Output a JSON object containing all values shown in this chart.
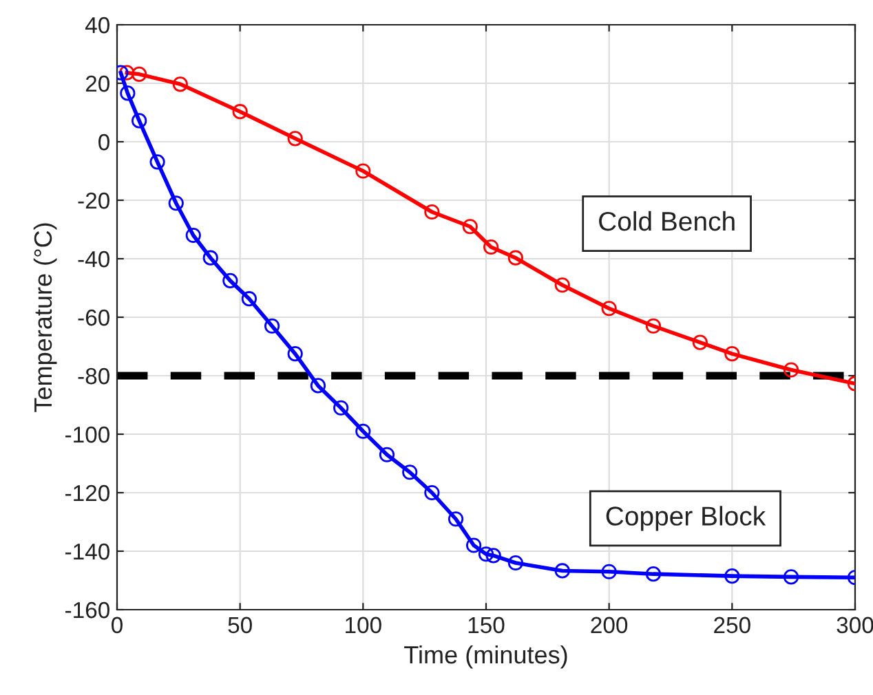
{
  "chart_data": {
    "type": "line",
    "xlabel": "Time (minutes)",
    "ylabel": "Temperature (°C)",
    "xlim": [
      0,
      300
    ],
    "xticks": [
      0,
      50,
      100,
      150,
      200,
      250,
      300
    ],
    "ylim": [
      -160,
      40
    ],
    "yticks": [
      -160,
      -140,
      -120,
      -100,
      -80,
      -60,
      -40,
      -20,
      0,
      20,
      40
    ],
    "grid": true,
    "marker": "circle",
    "legend": false,
    "ref_lines": [
      {
        "axis": "y",
        "value": -80,
        "color": "#000000",
        "line_style": "dashed"
      }
    ],
    "series": [
      {
        "name": "Cold Bench",
        "color": "#ff0000",
        "x": [
          4,
          9,
          25.7,
          50,
          72.4,
          100,
          128,
          143.5,
          152,
          162,
          181,
          200,
          218,
          237,
          250,
          274,
          300
        ],
        "values": [
          23.6,
          23.1,
          19.7,
          10.3,
          1.1,
          -10,
          -24,
          -29,
          -36,
          -39.7,
          -49,
          -57,
          -63,
          -68.6,
          -72.5,
          -78,
          -82.7
        ]
      },
      {
        "name": "Copper Block",
        "color": "#0000ff",
        "x": [
          1.5,
          4.3,
          9,
          16.4,
          24,
          31,
          38,
          46,
          53.7,
          63,
          72.4,
          81.7,
          91,
          100,
          109.7,
          119,
          128,
          137.7,
          145,
          150,
          153,
          162,
          181,
          200,
          218,
          250,
          274,
          300
        ],
        "values": [
          23.6,
          16.6,
          7.2,
          -6.9,
          -21,
          -32,
          -39.7,
          -47.5,
          -53.7,
          -63,
          -72.5,
          -83.4,
          -91,
          -99,
          -107,
          -113,
          -120,
          -129,
          -138,
          -141,
          -141.5,
          -144,
          -146.7,
          -147,
          -147.8,
          -148.5,
          -148.8,
          -149
        ]
      }
    ]
  }
}
